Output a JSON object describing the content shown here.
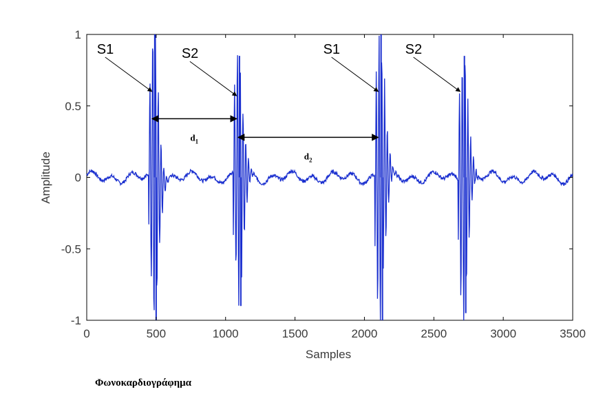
{
  "chart_data": {
    "type": "line",
    "xlabel": "Samples",
    "ylabel": "Amplitude",
    "xlim": [
      0,
      3500
    ],
    "ylim": [
      -1,
      1
    ],
    "x_ticks": [
      "0",
      "500",
      "1000",
      "1500",
      "2000",
      "2500",
      "3000",
      "3500"
    ],
    "y_ticks": [
      "1",
      "0.5",
      "0",
      "-0.5",
      "-1"
    ],
    "series_color": "#1a2fcf",
    "series": [
      {
        "peaks": [
          {
            "label": "S1",
            "x": 490,
            "max": 1.0,
            "min": -1.0
          },
          {
            "label": "S2",
            "x": 1100,
            "max": 0.85,
            "min": -0.9
          },
          {
            "label": "S1",
            "x": 2120,
            "max": 1.0,
            "min": -1.0
          },
          {
            "label": "S2",
            "x": 2720,
            "max": 0.85,
            "min": -0.95
          }
        ]
      }
    ],
    "annotations": [
      {
        "text": "S1",
        "points_to": {
          "x": 470,
          "y": 0.6
        }
      },
      {
        "text": "S2",
        "points_to": {
          "x": 1080,
          "y": 0.57
        }
      },
      {
        "text": "S1",
        "points_to": {
          "x": 2100,
          "y": 0.6
        }
      },
      {
        "text": "S2",
        "points_to": {
          "x": 2690,
          "y": 0.6
        }
      }
    ],
    "intervals": [
      {
        "label": "d",
        "subscript": "1",
        "from": 470,
        "to": 1080,
        "y": 0.41
      },
      {
        "label": "d",
        "subscript": "2",
        "from": 1090,
        "to": 2100,
        "y": 0.28
      }
    ]
  },
  "caption": "Φωνοκαρδιογράφημα"
}
